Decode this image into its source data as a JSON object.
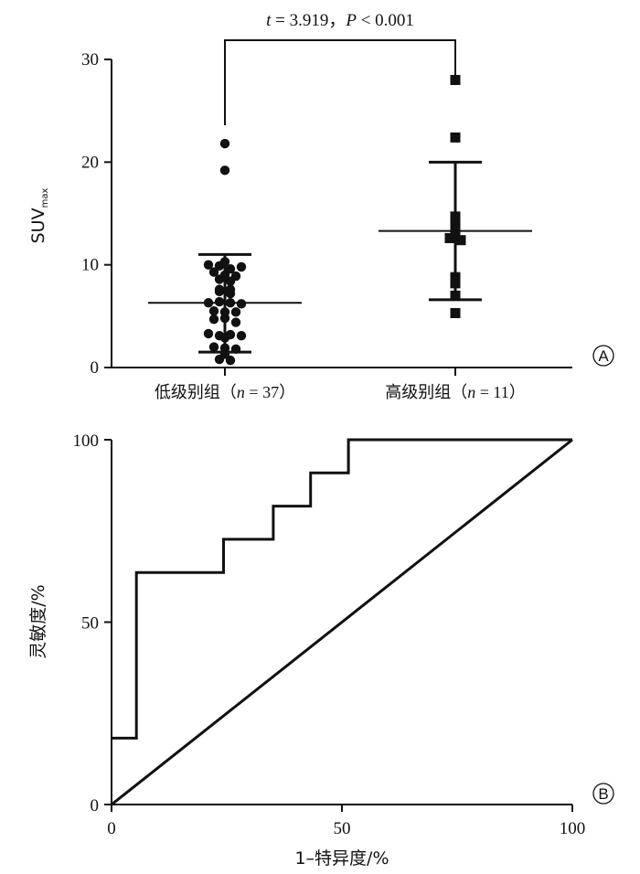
{
  "chart_data": [
    {
      "type": "scatter",
      "panel_label": "A",
      "ylabel_main": "SUV",
      "ylabel_sub": "max",
      "ylim": [
        0,
        30
      ],
      "yticks": [
        "0",
        "10",
        "20",
        "30"
      ],
      "significance": {
        "t_symbol": "t",
        "t_text": " = 3.919，",
        "p_symbol": "P",
        "p_text": " < 0.001"
      },
      "groups": [
        {
          "label_prefix": "低级别组（",
          "label_n": "n",
          "label_suffix": " = 37）",
          "marker": "circle",
          "mean": 6.3,
          "sd_upper": 11.0,
          "sd_lower": 1.5,
          "values": [
            21.8,
            19.2,
            10.3,
            10.0,
            9.9,
            9.6,
            9.8,
            9.3,
            9.0,
            8.9,
            8.6,
            8.4,
            7.6,
            7.4,
            7.6,
            7.2,
            6.3,
            6.4,
            6.3,
            6.2,
            5.5,
            5.4,
            5.4,
            4.7,
            4.8,
            4.4,
            3.3,
            3.1,
            3.2,
            2.9,
            3.1,
            2.0,
            1.9,
            1.8,
            1.3,
            0.8,
            0.7
          ]
        },
        {
          "label_prefix": "高级别组（",
          "label_n": "n",
          "label_suffix": " = 11）",
          "marker": "square",
          "mean": 13.3,
          "sd_upper": 20.0,
          "sd_lower": 6.6,
          "values": [
            28.0,
            22.4,
            14.7,
            13.9,
            13.2,
            12.6,
            12.4,
            8.8,
            8.2,
            7.0,
            5.3
          ]
        }
      ]
    },
    {
      "type": "line",
      "panel_label": "B",
      "xlabel": "1–特异度/%",
      "ylabel": "灵敏度/%",
      "xlim": [
        0,
        100
      ],
      "ylim": [
        0,
        100
      ],
      "xticks": [
        "0",
        "50",
        "100"
      ],
      "yticks": [
        "0",
        "50",
        "100"
      ],
      "series": [
        {
          "x": [
            0,
            5.4,
            5.4,
            24.3,
            24.3,
            35.1,
            35.1,
            43.2,
            43.2,
            51.4,
            51.4,
            100
          ],
          "y": [
            18.2,
            18.2,
            63.6,
            63.6,
            72.7,
            72.7,
            81.8,
            81.8,
            90.9,
            90.9,
            100,
            100
          ]
        },
        {
          "x": [
            0,
            100
          ],
          "y": [
            0,
            100
          ]
        }
      ]
    }
  ]
}
